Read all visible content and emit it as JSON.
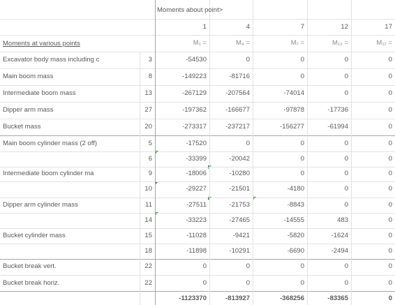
{
  "header": {
    "title": "Moments about point>",
    "points": [
      1,
      4,
      7,
      12,
      17
    ],
    "moment_labels": [
      "M₁ =",
      "M₄ =",
      "M₇ =",
      "M₁₂ =",
      "M₁₇ ="
    ],
    "row_label_title": "Moments at various points"
  },
  "table": {
    "rows": [
      {
        "label": "Excavator body mass including c",
        "point": 3,
        "values": [
          -54530,
          0,
          0,
          0,
          0
        ]
      },
      {
        "label": "Main boom mass",
        "point": 8,
        "values": [
          -149223,
          -81716,
          0,
          0,
          0
        ]
      },
      {
        "label": "Intermediate boom mass",
        "point": 13,
        "values": [
          -267129,
          -207564,
          -74014,
          0,
          0
        ]
      },
      {
        "label": "Dipper arm mass",
        "point": 27,
        "values": [
          -197362,
          -166677,
          -97878,
          -17736,
          0
        ]
      },
      {
        "label": "Bucket mass",
        "point": 20,
        "values": [
          -273317,
          -237217,
          -156277,
          -61994,
          0
        ]
      },
      {
        "label": "Main boom cylinder mass (2 off)",
        "point": 5,
        "values": [
          -17520,
          0,
          0,
          0,
          0
        ]
      },
      {
        "label": null,
        "point": 6,
        "values": [
          -33399,
          -20042,
          0,
          0,
          0
        ]
      },
      {
        "label": "Intermediate boom cylinder ma",
        "point": 9,
        "values": [
          -18006,
          -10280,
          0,
          0,
          0
        ]
      },
      {
        "label": null,
        "point": 10,
        "values": [
          -29227,
          -21501,
          -4180,
          0,
          0
        ]
      },
      {
        "label": "Dipper arm cylinder mass",
        "point": 11,
        "values": [
          -27511,
          -21753,
          -8843,
          0,
          0
        ]
      },
      {
        "label": null,
        "point": 14,
        "values": [
          -33223,
          -27465,
          -14555,
          483,
          0
        ]
      },
      {
        "label": "Bucket cylinder mass",
        "point": 15,
        "values": [
          -11028,
          -9421,
          -5820,
          -1624,
          0
        ]
      },
      {
        "label": null,
        "point": 18,
        "values": [
          -11898,
          -10291,
          -6690,
          -2494,
          0
        ]
      },
      {
        "label": "Bucket break vert.",
        "point": 22,
        "values": [
          0,
          0,
          0,
          0,
          0
        ]
      },
      {
        "label": "Bucket break horiz.",
        "point": 22,
        "values": [
          0,
          0,
          0,
          0,
          0
        ]
      }
    ],
    "totals": [
      -1123370,
      -813927,
      -368256,
      -83365,
      0
    ]
  }
}
